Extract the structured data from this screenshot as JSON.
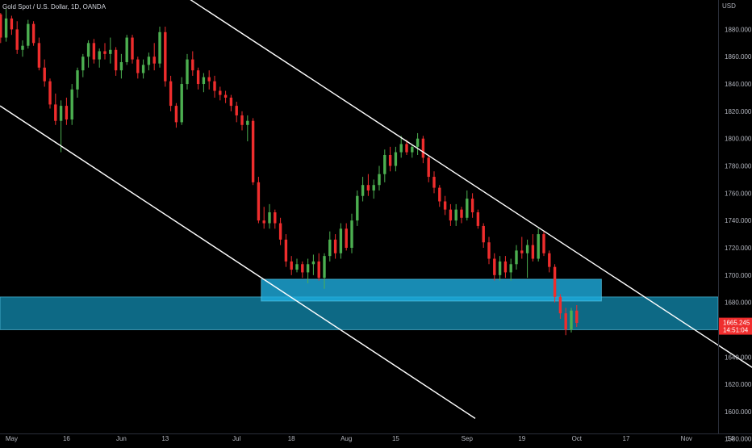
{
  "chart_data": {
    "type": "candlestick",
    "title": "Gold Spot / U.S. Dollar, 1D, OANDA",
    "currency": "USD",
    "xlim": [
      0,
      148
    ],
    "ylim": [
      1580,
      1898
    ],
    "x_ticks": [
      {
        "x": 3,
        "label": "May"
      },
      {
        "x": 13,
        "label": "16"
      },
      {
        "x": 23,
        "label": "Jun"
      },
      {
        "x": 31,
        "label": "13"
      },
      {
        "x": 44,
        "label": "Jul"
      },
      {
        "x": 54,
        "label": "18"
      },
      {
        "x": 64,
        "label": "Aug"
      },
      {
        "x": 73,
        "label": "15"
      },
      {
        "x": 86,
        "label": "Sep"
      },
      {
        "x": 96,
        "label": "19"
      },
      {
        "x": 106,
        "label": "Oct"
      },
      {
        "x": 115,
        "label": "17"
      },
      {
        "x": 126,
        "label": "Nov"
      },
      {
        "x": 134,
        "label": "14"
      },
      {
        "x": 146,
        "label": "Dec"
      }
    ],
    "y_ticks": [
      1580,
      1600,
      1620,
      1640,
      1660,
      1680,
      1700,
      1720,
      1740,
      1760,
      1780,
      1800,
      1820,
      1840,
      1860,
      1880
    ],
    "current_price": {
      "value": 1665.245,
      "label": "1665.245",
      "countdown": "14:51:04"
    },
    "zones": [
      {
        "x_start": 0,
        "x_end": 148,
        "y_low": 1660,
        "y_high": 1684,
        "color": "#0e6f8c"
      },
      {
        "x_start": 48.5,
        "x_end": 110.5,
        "y_low": 1681,
        "y_high": 1697,
        "color": "#1eaee0"
      }
    ],
    "trendlines": [
      {
        "x1": 35.5,
        "y1": 1902,
        "x2": 138.5,
        "y2": 1631
      },
      {
        "x1": 0,
        "y1": 1824,
        "x2": 87.5,
        "y2": 1595
      }
    ],
    "up_color": "#4caf50",
    "down_color": "#ef2d2d",
    "candles": [
      [
        1878,
        1893,
        1875,
        1891
      ],
      [
        1891,
        1892,
        1870,
        1874
      ],
      [
        1874,
        1895,
        1871,
        1888
      ],
      [
        1888,
        1890,
        1876,
        1880
      ],
      [
        1880,
        1886,
        1862,
        1865
      ],
      [
        1865,
        1872,
        1860,
        1868
      ],
      [
        1868,
        1887,
        1866,
        1884
      ],
      [
        1884,
        1886,
        1868,
        1870
      ],
      [
        1870,
        1874,
        1850,
        1852
      ],
      [
        1852,
        1858,
        1838,
        1842
      ],
      [
        1842,
        1844,
        1822,
        1825
      ],
      [
        1825,
        1833,
        1810,
        1813
      ],
      [
        1813,
        1828,
        1790,
        1824
      ],
      [
        1824,
        1830,
        1810,
        1814
      ],
      [
        1814,
        1840,
        1810,
        1836
      ],
      [
        1836,
        1852,
        1830,
        1850
      ],
      [
        1850,
        1862,
        1845,
        1860
      ],
      [
        1860,
        1872,
        1852,
        1870
      ],
      [
        1870,
        1873,
        1855,
        1858
      ],
      [
        1858,
        1866,
        1852,
        1864
      ],
      [
        1864,
        1870,
        1858,
        1862
      ],
      [
        1862,
        1874,
        1855,
        1865
      ],
      [
        1865,
        1867,
        1846,
        1850
      ],
      [
        1850,
        1862,
        1844,
        1856
      ],
      [
        1856,
        1876,
        1854,
        1874
      ],
      [
        1874,
        1876,
        1855,
        1858
      ],
      [
        1858,
        1860,
        1844,
        1848
      ],
      [
        1848,
        1858,
        1844,
        1854
      ],
      [
        1854,
        1863,
        1850,
        1860
      ],
      [
        1860,
        1870,
        1850,
        1855
      ],
      [
        1855,
        1882,
        1852,
        1878
      ],
      [
        1878,
        1882,
        1838,
        1842
      ],
      [
        1842,
        1846,
        1820,
        1824
      ],
      [
        1824,
        1826,
        1808,
        1812
      ],
      [
        1812,
        1845,
        1810,
        1840
      ],
      [
        1840,
        1862,
        1836,
        1858
      ],
      [
        1858,
        1864,
        1846,
        1850
      ],
      [
        1850,
        1852,
        1836,
        1840
      ],
      [
        1840,
        1848,
        1834,
        1845
      ],
      [
        1845,
        1850,
        1836,
        1842
      ],
      [
        1842,
        1846,
        1830,
        1835
      ],
      [
        1835,
        1838,
        1828,
        1832
      ],
      [
        1832,
        1835,
        1826,
        1830
      ],
      [
        1830,
        1832,
        1820,
        1824
      ],
      [
        1824,
        1827,
        1812,
        1817
      ],
      [
        1817,
        1820,
        1806,
        1810
      ],
      [
        1810,
        1817,
        1798,
        1813
      ],
      [
        1813,
        1815,
        1766,
        1768
      ],
      [
        1768,
        1772,
        1738,
        1740
      ],
      [
        1740,
        1750,
        1734,
        1738
      ],
      [
        1738,
        1752,
        1734,
        1746
      ],
      [
        1746,
        1748,
        1734,
        1738
      ],
      [
        1738,
        1742,
        1722,
        1726
      ],
      [
        1726,
        1730,
        1706,
        1710
      ],
      [
        1710,
        1714,
        1700,
        1704
      ],
      [
        1704,
        1712,
        1702,
        1708
      ],
      [
        1708,
        1710,
        1698,
        1702
      ],
      [
        1702,
        1712,
        1694,
        1708
      ],
      [
        1708,
        1715,
        1700,
        1710
      ],
      [
        1710,
        1716,
        1696,
        1698
      ],
      [
        1698,
        1716,
        1690,
        1714
      ],
      [
        1714,
        1732,
        1710,
        1726
      ],
      [
        1726,
        1730,
        1712,
        1716
      ],
      [
        1716,
        1738,
        1712,
        1734
      ],
      [
        1734,
        1738,
        1718,
        1720
      ],
      [
        1720,
        1745,
        1716,
        1740
      ],
      [
        1740,
        1762,
        1736,
        1758
      ],
      [
        1758,
        1772,
        1754,
        1766
      ],
      [
        1766,
        1774,
        1758,
        1762
      ],
      [
        1762,
        1770,
        1756,
        1766
      ],
      [
        1766,
        1780,
        1762,
        1774
      ],
      [
        1774,
        1792,
        1768,
        1788
      ],
      [
        1788,
        1794,
        1776,
        1780
      ],
      [
        1780,
        1794,
        1776,
        1790
      ],
      [
        1790,
        1802,
        1786,
        1796
      ],
      [
        1796,
        1799,
        1788,
        1790
      ],
      [
        1790,
        1796,
        1786,
        1794
      ],
      [
        1794,
        1804,
        1788,
        1800
      ],
      [
        1800,
        1802,
        1782,
        1786
      ],
      [
        1786,
        1788,
        1768,
        1772
      ],
      [
        1772,
        1776,
        1760,
        1764
      ],
      [
        1764,
        1766,
        1750,
        1754
      ],
      [
        1754,
        1758,
        1744,
        1748
      ],
      [
        1748,
        1752,
        1736,
        1740
      ],
      [
        1740,
        1752,
        1736,
        1748
      ],
      [
        1748,
        1750,
        1738,
        1742
      ],
      [
        1742,
        1762,
        1740,
        1756
      ],
      [
        1756,
        1760,
        1742,
        1746
      ],
      [
        1746,
        1748,
        1734,
        1736
      ],
      [
        1736,
        1738,
        1720,
        1724
      ],
      [
        1724,
        1728,
        1708,
        1712
      ],
      [
        1712,
        1716,
        1696,
        1700
      ],
      [
        1700,
        1714,
        1696,
        1710
      ],
      [
        1710,
        1714,
        1698,
        1702
      ],
      [
        1702,
        1712,
        1696,
        1708
      ],
      [
        1708,
        1722,
        1704,
        1718
      ],
      [
        1718,
        1728,
        1712,
        1716
      ],
      [
        1716,
        1726,
        1698,
        1722
      ],
      [
        1722,
        1730,
        1710,
        1712
      ],
      [
        1712,
        1734,
        1710,
        1730
      ],
      [
        1730,
        1732,
        1714,
        1716
      ],
      [
        1716,
        1718,
        1702,
        1706
      ],
      [
        1706,
        1708,
        1680,
        1684
      ],
      [
        1684,
        1686,
        1668,
        1672
      ],
      [
        1672,
        1676,
        1656,
        1660
      ],
      [
        1660,
        1676,
        1658,
        1674
      ],
      [
        1674,
        1678,
        1662,
        1665
      ]
    ]
  }
}
